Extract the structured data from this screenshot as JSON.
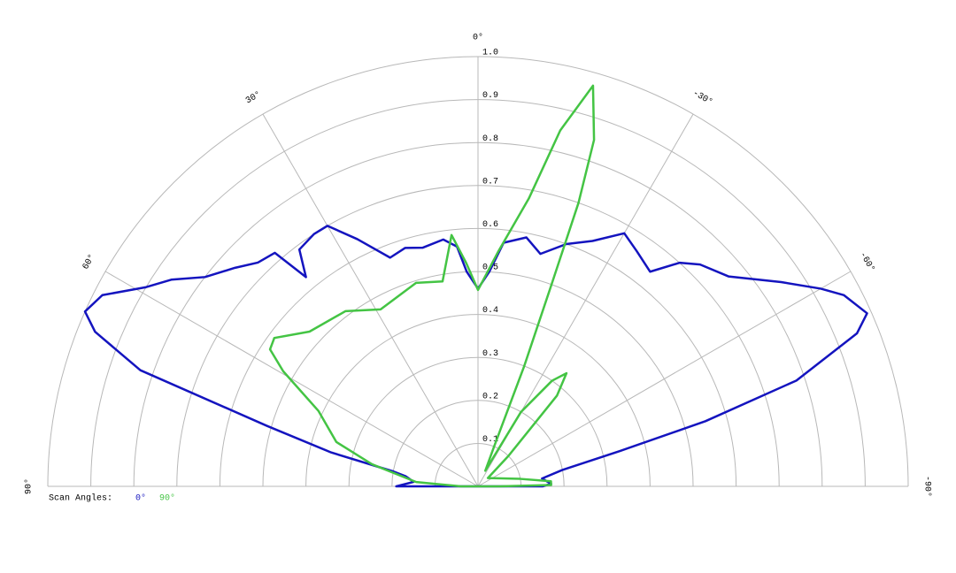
{
  "chart_data": {
    "type": "polar",
    "legend_title": "Scan Angles:",
    "rlim": [
      0,
      1
    ],
    "rticks": [
      0.1,
      0.2,
      0.3,
      0.4,
      0.5,
      0.6,
      0.7,
      0.8,
      0.9,
      {
        "value": 1,
        "label": "1.0"
      }
    ],
    "thetalim": [
      90,
      -90
    ],
    "thetaticks": [
      {
        "value": 90,
        "label": "90°"
      },
      {
        "value": 60,
        "label": "60°"
      },
      {
        "value": 30,
        "label": "30°"
      },
      {
        "value": 0,
        "label": "0°"
      },
      {
        "value": -30,
        "label": "-30°"
      },
      {
        "value": -60,
        "label": "-60°"
      },
      {
        "value": -90,
        "label": "-90°"
      }
    ],
    "series": [
      {
        "name": "0°",
        "color": "#1414bf",
        "theta": [
          90,
          86,
          82,
          80,
          77,
          74,
          71,
          68,
          66,
          63,
          59,
          56,
          52.5,
          48,
          44.5,
          41,
          39.4,
          37,
          33,
          30,
          26,
          21,
          17,
          13,
          8,
          5,
          3,
          0,
          -3,
          -6,
          -11,
          -15,
          -20,
          -25,
          -30,
          -34,
          -38.7,
          -42,
          -45,
          -50,
          -56,
          -60,
          -62.4,
          -66,
          -68,
          -71.6,
          -74,
          -76,
          -79,
          -83,
          -88,
          -90
        ],
        "r": [
          0.19,
          0.15,
          0.17,
          0.2,
          0.35,
          0.51,
          0.83,
          0.96,
          1.0,
          0.98,
          0.9,
          0.86,
          0.8,
          0.76,
          0.73,
          0.72,
          0.63,
          0.69,
          0.7,
          0.7,
          0.64,
          0.57,
          0.58,
          0.57,
          0.58,
          0.56,
          0.5,
          0.46,
          0.5,
          0.57,
          0.59,
          0.56,
          0.6,
          0.63,
          0.68,
          0.66,
          0.64,
          0.7,
          0.73,
          0.76,
          0.85,
          0.92,
          0.96,
          0.99,
          0.95,
          0.78,
          0.55,
          0.34,
          0.2,
          0.15,
          0.17,
          0.15
        ]
      },
      {
        "name": "90°",
        "color": "#44c444",
        "theta": [
          90,
          86,
          78.2,
          72.6,
          64.7,
          59.4,
          56.6,
          53.9,
          47.4,
          37.1,
          28.8,
          16.9,
          9.8,
          6,
          3,
          0,
          -5,
          -10,
          -13,
          -16,
          -18.5,
          -19.5,
          -20,
          -21,
          -22,
          -25,
          -30,
          -35,
          -38,
          -41,
          -45,
          -50,
          -80,
          -86,
          -89,
          -90
        ],
        "r": [
          0.04,
          0.144,
          0.252,
          0.345,
          0.41,
          0.526,
          0.579,
          0.586,
          0.532,
          0.511,
          0.47,
          0.495,
          0.484,
          0.588,
          0.52,
          0.457,
          0.55,
          0.68,
          0.85,
          0.97,
          0.85,
          0.7,
          0.5,
          0.3,
          0.1,
          0.04,
          0.2,
          0.3,
          0.334,
          0.28,
          0.1,
          0.03,
          0.1,
          0.17,
          0.17,
          0.05
        ]
      }
    ]
  }
}
